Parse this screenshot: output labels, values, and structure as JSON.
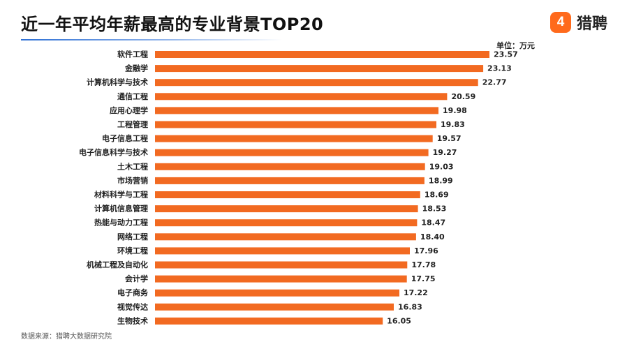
{
  "header": {
    "title": "近一年平均年薪最高的专业背景TOP20",
    "logo_text": "猎聘",
    "logo_glyph": "4",
    "logo_icon": "liepin-logo-icon"
  },
  "unit_label": "单位：万元",
  "source": "数据来源：猎聘大数据研究院",
  "colors": {
    "bar": "#f26a21",
    "accent_rule": "#2d6fd4",
    "logo": "#ff6a1c"
  },
  "chart_data": {
    "type": "bar",
    "orientation": "horizontal",
    "title": "近一年平均年薪最高的专业背景TOP20",
    "unit": "万元",
    "categories": [
      "软件工程",
      "金融学",
      "计算机科学与技术",
      "通信工程",
      "应用心理学",
      "工程管理",
      "电子信息工程",
      "电子信息科学与技术",
      "土木工程",
      "市场营销",
      "材料科学与工程",
      "计算机信息管理",
      "热能与动力工程",
      "网络工程",
      "环境工程",
      "机械工程及自动化",
      "会计学",
      "电子商务",
      "视觉传达",
      "生物技术"
    ],
    "values": [
      23.57,
      23.13,
      22.77,
      20.59,
      19.98,
      19.83,
      19.57,
      19.27,
      19.03,
      18.99,
      18.69,
      18.53,
      18.47,
      18.4,
      17.96,
      17.78,
      17.75,
      17.22,
      16.83,
      16.05
    ],
    "value_labels": [
      "23.57",
      "23.13",
      "22.77",
      "20.59",
      "19.98",
      "19.83",
      "19.57",
      "19.27",
      "19.03",
      "18.99",
      "18.69",
      "18.53",
      "18.47",
      "18.40",
      "17.96",
      "17.78",
      "17.75",
      "17.22",
      "16.83",
      "16.05"
    ],
    "xlim": [
      0,
      23.57
    ],
    "grid": false,
    "legend": "none",
    "data_labels": true
  }
}
